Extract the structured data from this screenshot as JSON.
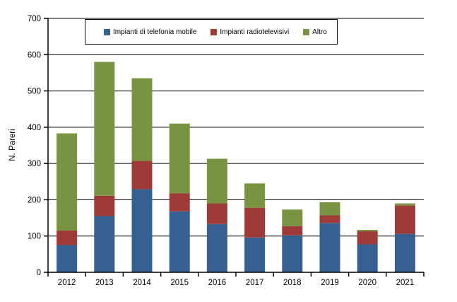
{
  "chart_data": {
    "type": "bar",
    "stacked": true,
    "title": "",
    "xlabel": "",
    "ylabel": "N. Pareri",
    "ylim": [
      0,
      700
    ],
    "ytick_step": 100,
    "grid": true,
    "legend_position": "top-inside",
    "categories": [
      "2012",
      "2013",
      "2014",
      "2015",
      "2016",
      "2017",
      "2018",
      "2019",
      "2020",
      "2021"
    ],
    "series": [
      {
        "name": "Impianti di telefonia mobile",
        "color": "#366092",
        "values": [
          75,
          155,
          229,
          168,
          133,
          96,
          102,
          136,
          77,
          106
        ]
      },
      {
        "name": "Impianti radiotelevisivi",
        "color": "#9E3B38",
        "values": [
          40,
          56,
          78,
          50,
          57,
          82,
          25,
          21,
          36,
          78
        ]
      },
      {
        "name": "Altro",
        "color": "#789440",
        "values": [
          268,
          369,
          228,
          192,
          123,
          67,
          46,
          36,
          4,
          6
        ]
      }
    ],
    "totals": [
      383,
      580,
      535,
      410,
      313,
      245,
      173,
      193,
      117,
      190
    ],
    "colors": {
      "axis": "#000000",
      "gridline": "#000000",
      "background": "#ffffff",
      "text": "#000000"
    }
  }
}
